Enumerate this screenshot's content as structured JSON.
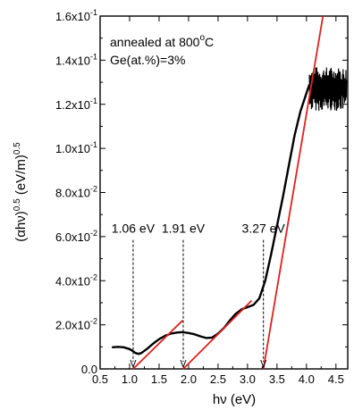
{
  "chart_data": {
    "type": "line",
    "xlabel": "hν (eV)",
    "ylabel": "(αhν)^0.5 (eV/m)^0.5",
    "xlim": [
      0.5,
      4.7
    ],
    "ylim": [
      0.0,
      0.16
    ],
    "x_ticks": [
      {
        "v": 0.5,
        "label": "0.5"
      },
      {
        "v": 1.0,
        "label": "1.0"
      },
      {
        "v": 1.5,
        "label": "1.5"
      },
      {
        "v": 2.0,
        "label": "2.0"
      },
      {
        "v": 2.5,
        "label": "2.5"
      },
      {
        "v": 3.0,
        "label": "3.0"
      },
      {
        "v": 3.5,
        "label": "3.5"
      },
      {
        "v": 4.0,
        "label": "4.0"
      },
      {
        "v": 4.5,
        "label": "4.5"
      }
    ],
    "y_ticks": [
      {
        "v": 0.0,
        "label": "0.0"
      },
      {
        "v": 0.02,
        "label": "2.0x10",
        "exp": "-2"
      },
      {
        "v": 0.04,
        "label": "4.0x10",
        "exp": "-2"
      },
      {
        "v": 0.06,
        "label": "6.0x10",
        "exp": "-2"
      },
      {
        "v": 0.08,
        "label": "8.0x10",
        "exp": "-2"
      },
      {
        "v": 0.1,
        "label": "1.0x10",
        "exp": "-1"
      },
      {
        "v": 0.12,
        "label": "1.2x10",
        "exp": "-1"
      },
      {
        "v": 0.14,
        "label": "1.4x10",
        "exp": "-1"
      },
      {
        "v": 0.16,
        "label": "1.6x10",
        "exp": "-1"
      }
    ],
    "annotations": {
      "line1": "annealed at 800",
      "line1_sup": "o",
      "line1_tail": "C",
      "line2": "Ge(at.%)=3%"
    },
    "series": [
      {
        "color": "#000000",
        "x": [
          0.7,
          0.8,
          0.9,
          1.0,
          1.05,
          1.1,
          1.15,
          1.2,
          1.3,
          1.4,
          1.5,
          1.6,
          1.7,
          1.8,
          1.9,
          2.0,
          2.1,
          2.2,
          2.3,
          2.4,
          2.5,
          2.6,
          2.7,
          2.8,
          2.9,
          3.0,
          3.1,
          3.2,
          3.3,
          3.4,
          3.5,
          3.6,
          3.7,
          3.8,
          3.9,
          4.0,
          4.05
        ],
        "y": [
          0.0098,
          0.01,
          0.0098,
          0.009,
          0.0082,
          0.0072,
          0.0068,
          0.0072,
          0.0092,
          0.0115,
          0.0135,
          0.015,
          0.016,
          0.0165,
          0.0167,
          0.0163,
          0.0157,
          0.0148,
          0.014,
          0.0142,
          0.016,
          0.0185,
          0.022,
          0.025,
          0.027,
          0.028,
          0.029,
          0.032,
          0.04,
          0.052,
          0.065,
          0.078,
          0.092,
          0.106,
          0.117,
          0.125,
          0.129
        ]
      }
    ],
    "noisy_segment": {
      "x_start": 4.05,
      "x_end": 4.68,
      "y_low": 0.117,
      "y_high": 0.137
    },
    "tangent_lines": [
      {
        "color": "#e02020",
        "x": [
          1.06,
          1.9
        ],
        "y": [
          0.0,
          0.022
        ]
      },
      {
        "color": "#e02020",
        "x": [
          1.91,
          3.07
        ],
        "y": [
          0.0,
          0.031
        ]
      },
      {
        "color": "#e02020",
        "x": [
          3.27,
          4.28
        ],
        "y": [
          0.0,
          0.16
        ]
      }
    ],
    "markers": [
      {
        "x": 1.06,
        "label": "1.06 eV",
        "y_top": 0.0585
      },
      {
        "x": 1.91,
        "label": "1.91 eV",
        "y_top": 0.0585
      },
      {
        "x": 3.27,
        "label": "3.27 eV",
        "y_top": 0.0585
      }
    ]
  }
}
